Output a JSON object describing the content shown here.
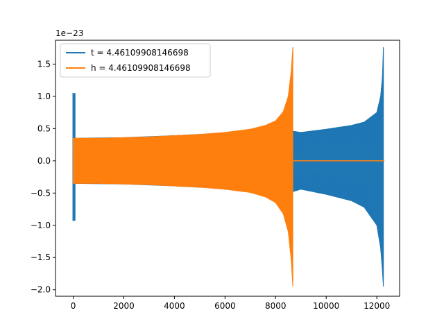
{
  "chart_data": {
    "type": "line",
    "title": "",
    "xlabel": "",
    "ylabel": "",
    "offset_label": "1e−23",
    "xlim": [
      -700,
      12900
    ],
    "ylim": [
      -2.1,
      1.87
    ],
    "xticks": [
      0,
      2000,
      4000,
      6000,
      8000,
      10000,
      12000
    ],
    "xtick_labels": [
      "0",
      "2000",
      "4000",
      "6000",
      "8000",
      "10000",
      "12000"
    ],
    "yticks": [
      -2.0,
      -1.5,
      -1.0,
      -0.5,
      0.0,
      0.5,
      1.0,
      1.5
    ],
    "ytick_labels": [
      "−2.0",
      "−1.5",
      "−1.0",
      "−0.5",
      "0.0",
      "0.5",
      "1.0",
      "1.5"
    ],
    "grid": false,
    "legend_position": "top-left",
    "series": [
      {
        "name": "t = 4.46109908146698",
        "color": "#1f77b4",
        "spike": {
          "x": [
            0,
            60
          ],
          "upper": 1.05,
          "lower": -0.93
        },
        "envelope_upper": [
          [
            60,
            0.35
          ],
          [
            2000,
            0.36
          ],
          [
            4000,
            0.39
          ],
          [
            6000,
            0.43
          ],
          [
            7500,
            0.47
          ],
          [
            8500,
            0.47
          ],
          [
            9000,
            0.44
          ],
          [
            10000,
            0.49
          ],
          [
            11000,
            0.55
          ],
          [
            11500,
            0.6
          ],
          [
            12000,
            0.75
          ],
          [
            12150,
            1.0
          ],
          [
            12220,
            1.3
          ],
          [
            12260,
            1.76
          ]
        ],
        "envelope_lower": [
          [
            60,
            -0.35
          ],
          [
            2000,
            -0.36
          ],
          [
            4000,
            -0.39
          ],
          [
            6000,
            -0.43
          ],
          [
            7500,
            -0.5
          ],
          [
            8500,
            -0.5
          ],
          [
            9000,
            -0.44
          ],
          [
            10000,
            -0.52
          ],
          [
            11000,
            -0.62
          ],
          [
            11500,
            -0.72
          ],
          [
            12000,
            -1.0
          ],
          [
            12150,
            -1.35
          ],
          [
            12220,
            -1.7
          ],
          [
            12260,
            -1.95
          ]
        ],
        "end_x": 12300
      },
      {
        "name": "h = 4.46109908146698",
        "color": "#ff7f0e",
        "envelope_upper": [
          [
            0,
            0.35
          ],
          [
            1000,
            0.35
          ],
          [
            2000,
            0.36
          ],
          [
            3000,
            0.37
          ],
          [
            4000,
            0.39
          ],
          [
            5000,
            0.41
          ],
          [
            6000,
            0.44
          ],
          [
            7000,
            0.49
          ],
          [
            7600,
            0.55
          ],
          [
            8000,
            0.62
          ],
          [
            8300,
            0.76
          ],
          [
            8500,
            1.0
          ],
          [
            8620,
            1.4
          ],
          [
            8680,
            1.76
          ]
        ],
        "envelope_lower": [
          [
            0,
            -0.35
          ],
          [
            1000,
            -0.35
          ],
          [
            2000,
            -0.36
          ],
          [
            3000,
            -0.37
          ],
          [
            4000,
            -0.39
          ],
          [
            5000,
            -0.41
          ],
          [
            6000,
            -0.44
          ],
          [
            7000,
            -0.49
          ],
          [
            7600,
            -0.56
          ],
          [
            8000,
            -0.65
          ],
          [
            8300,
            -0.82
          ],
          [
            8500,
            -1.1
          ],
          [
            8620,
            -1.55
          ],
          [
            8680,
            -1.95
          ]
        ],
        "flat_after": {
          "x_start": 8700,
          "x_end": 12300,
          "value": 0.0
        }
      }
    ]
  }
}
